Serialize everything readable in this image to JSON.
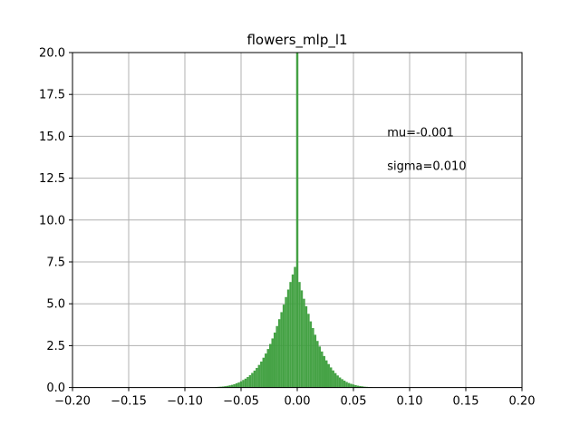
{
  "chart_data": {
    "type": "bar",
    "title": "flowers_mlp_l1",
    "xlabel": "",
    "ylabel": "",
    "xlim": [
      -0.2,
      0.2
    ],
    "ylim": [
      0,
      20
    ],
    "xticks": [
      -0.2,
      -0.15,
      -0.1,
      -0.05,
      0.0,
      0.05,
      0.1,
      0.15,
      0.2
    ],
    "xtick_labels": [
      "−0.20",
      "−0.15",
      "−0.10",
      "−0.05",
      "0.00",
      "0.05",
      "0.10",
      "0.15",
      "0.20"
    ],
    "yticks": [
      0,
      2.5,
      5,
      7.5,
      10,
      12.5,
      15,
      17.5,
      20
    ],
    "ytick_labels": [
      "0.0",
      "2.5",
      "5.0",
      "7.5",
      "10.0",
      "12.5",
      "15.0",
      "17.5",
      "20.0"
    ],
    "grid": true,
    "bar_color": "#3c9e3c",
    "bin_width": 0.002,
    "annotations": [
      {
        "text": "mu=-0.001",
        "x": 0.08,
        "y": 15.0
      },
      {
        "text": "sigma=0.010",
        "x": 0.08,
        "y": 13.0
      }
    ],
    "bins": [
      {
        "x": -0.072,
        "y": 0.03
      },
      {
        "x": -0.07,
        "y": 0.04
      },
      {
        "x": -0.068,
        "y": 0.05
      },
      {
        "x": -0.066,
        "y": 0.06
      },
      {
        "x": -0.064,
        "y": 0.08
      },
      {
        "x": -0.062,
        "y": 0.1
      },
      {
        "x": -0.06,
        "y": 0.13
      },
      {
        "x": -0.058,
        "y": 0.16
      },
      {
        "x": -0.056,
        "y": 0.2
      },
      {
        "x": -0.054,
        "y": 0.25
      },
      {
        "x": -0.052,
        "y": 0.3
      },
      {
        "x": -0.05,
        "y": 0.37
      },
      {
        "x": -0.048,
        "y": 0.45
      },
      {
        "x": -0.046,
        "y": 0.53
      },
      {
        "x": -0.044,
        "y": 0.63
      },
      {
        "x": -0.042,
        "y": 0.74
      },
      {
        "x": -0.04,
        "y": 0.87
      },
      {
        "x": -0.038,
        "y": 1.01
      },
      {
        "x": -0.036,
        "y": 1.17
      },
      {
        "x": -0.034,
        "y": 1.35
      },
      {
        "x": -0.032,
        "y": 1.55
      },
      {
        "x": -0.03,
        "y": 1.78
      },
      {
        "x": -0.028,
        "y": 2.03
      },
      {
        "x": -0.026,
        "y": 2.3
      },
      {
        "x": -0.024,
        "y": 2.6
      },
      {
        "x": -0.022,
        "y": 2.93
      },
      {
        "x": -0.02,
        "y": 3.28
      },
      {
        "x": -0.018,
        "y": 3.67
      },
      {
        "x": -0.016,
        "y": 4.08
      },
      {
        "x": -0.014,
        "y": 4.5
      },
      {
        "x": -0.012,
        "y": 4.95
      },
      {
        "x": -0.01,
        "y": 5.4
      },
      {
        "x": -0.008,
        "y": 5.85
      },
      {
        "x": -0.006,
        "y": 6.3
      },
      {
        "x": -0.004,
        "y": 6.75
      },
      {
        "x": -0.002,
        "y": 7.2
      },
      {
        "x": 0.0,
        "y": 20.0
      },
      {
        "x": 0.002,
        "y": 6.3
      },
      {
        "x": 0.004,
        "y": 5.8
      },
      {
        "x": 0.006,
        "y": 5.3
      },
      {
        "x": 0.008,
        "y": 4.85
      },
      {
        "x": 0.01,
        "y": 4.4
      },
      {
        "x": 0.012,
        "y": 3.95
      },
      {
        "x": 0.014,
        "y": 3.55
      },
      {
        "x": 0.016,
        "y": 3.15
      },
      {
        "x": 0.018,
        "y": 2.78
      },
      {
        "x": 0.02,
        "y": 2.45
      },
      {
        "x": 0.022,
        "y": 2.15
      },
      {
        "x": 0.024,
        "y": 1.88
      },
      {
        "x": 0.026,
        "y": 1.62
      },
      {
        "x": 0.028,
        "y": 1.4
      },
      {
        "x": 0.03,
        "y": 1.2
      },
      {
        "x": 0.032,
        "y": 1.02
      },
      {
        "x": 0.034,
        "y": 0.86
      },
      {
        "x": 0.036,
        "y": 0.72
      },
      {
        "x": 0.038,
        "y": 0.6
      },
      {
        "x": 0.04,
        "y": 0.5
      },
      {
        "x": 0.042,
        "y": 0.41
      },
      {
        "x": 0.044,
        "y": 0.33
      },
      {
        "x": 0.046,
        "y": 0.27
      },
      {
        "x": 0.048,
        "y": 0.22
      },
      {
        "x": 0.05,
        "y": 0.18
      },
      {
        "x": 0.052,
        "y": 0.14
      },
      {
        "x": 0.054,
        "y": 0.11
      },
      {
        "x": 0.056,
        "y": 0.09
      },
      {
        "x": 0.058,
        "y": 0.07
      },
      {
        "x": 0.06,
        "y": 0.05
      },
      {
        "x": 0.062,
        "y": 0.04
      },
      {
        "x": 0.064,
        "y": 0.03
      },
      {
        "x": 0.066,
        "y": 0.02
      }
    ]
  }
}
